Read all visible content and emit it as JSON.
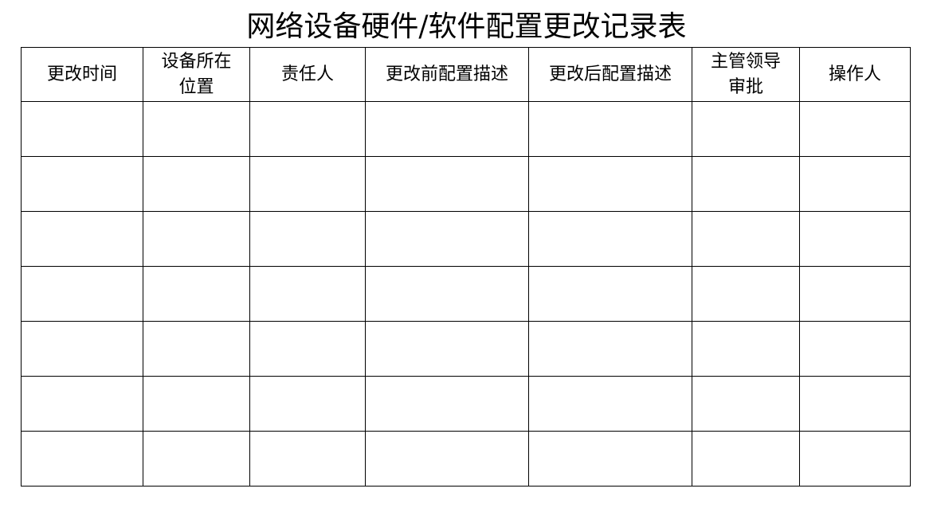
{
  "title": "网络设备硬件/软件配置更改记录表",
  "table": {
    "headers": [
      [
        "更改时间"
      ],
      [
        "设备所在",
        "位置"
      ],
      [
        "责任人"
      ],
      [
        "更改前配置描述"
      ],
      [
        "更改后配置描述"
      ],
      [
        "主管领导",
        "审批"
      ],
      [
        "操作人"
      ]
    ],
    "rows": [
      [
        "",
        "",
        "",
        "",
        "",
        "",
        ""
      ],
      [
        "",
        "",
        "",
        "",
        "",
        "",
        ""
      ],
      [
        "",
        "",
        "",
        "",
        "",
        "",
        ""
      ],
      [
        "",
        "",
        "",
        "",
        "",
        "",
        ""
      ],
      [
        "",
        "",
        "",
        "",
        "",
        "",
        ""
      ],
      [
        "",
        "",
        "",
        "",
        "",
        "",
        ""
      ],
      [
        "",
        "",
        "",
        "",
        "",
        "",
        ""
      ]
    ]
  }
}
